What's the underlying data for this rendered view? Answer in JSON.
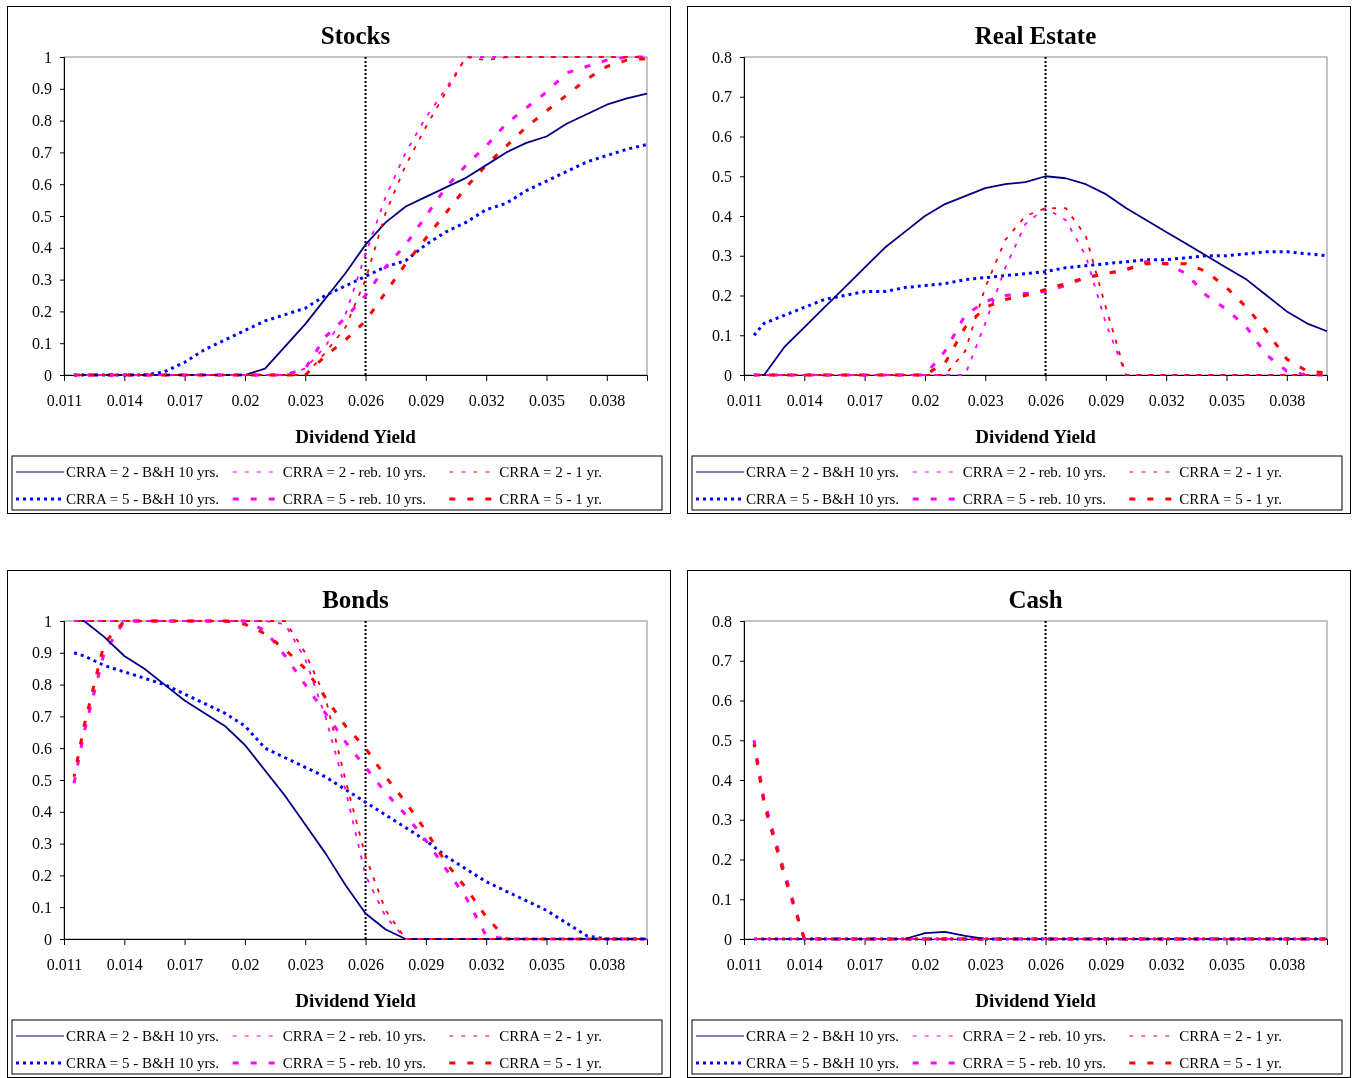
{
  "chart_data": [
    {
      "type": "line",
      "title": "Stocks",
      "xlabel": "Dividend Yield",
      "x": [
        0.0115,
        0.012,
        0.013,
        0.014,
        0.015,
        0.016,
        0.017,
        0.018,
        0.019,
        0.02,
        0.021,
        0.022,
        0.023,
        0.024,
        0.025,
        0.026,
        0.027,
        0.028,
        0.029,
        0.03,
        0.031,
        0.032,
        0.033,
        0.034,
        0.035,
        0.036,
        0.037,
        0.038,
        0.039,
        0.04
      ],
      "xlim": [
        0.011,
        0.04
      ],
      "xticks": [
        0.011,
        0.014,
        0.017,
        0.02,
        0.023,
        0.026,
        0.029,
        0.032,
        0.035,
        0.038
      ],
      "ylim": [
        0,
        1
      ],
      "yticks": [
        0,
        0.1,
        0.2,
        0.3,
        0.4,
        0.5,
        0.6,
        0.7,
        0.8,
        0.9,
        1
      ],
      "grid": false,
      "legend": "bottom",
      "ref_lines": [
        {
          "axis": "x",
          "value": 0.026,
          "color": "#000000",
          "line_style": "dotted"
        }
      ],
      "series": [
        {
          "name": "CRRA = 2 - B&H 10 yrs.",
          "color": "#000080",
          "line_style": "solid",
          "values": [
            0,
            0,
            0,
            0,
            0,
            0,
            0,
            0,
            0,
            0,
            0.02,
            0.09,
            0.16,
            0.24,
            0.32,
            0.41,
            0.48,
            0.53,
            0.56,
            0.59,
            0.62,
            0.66,
            0.7,
            0.73,
            0.75,
            0.79,
            0.82,
            0.85,
            0.87,
            0.885
          ]
        },
        {
          "name": "CRRA = 2 - reb. 10 yrs.",
          "color": "#ff00ff",
          "line_style": "dashed",
          "values": [
            0,
            0,
            0,
            0,
            0,
            0,
            0,
            0,
            0,
            0,
            0,
            0,
            0.02,
            0.09,
            0.19,
            0.38,
            0.56,
            0.7,
            0.81,
            0.9,
            1,
            1,
            1,
            1,
            1,
            1,
            1,
            1,
            1,
            1
          ]
        },
        {
          "name": "CRRA = 2 - 1 yr.",
          "color": "#ff0000",
          "line_style": "dashed",
          "values": [
            0,
            0,
            0,
            0,
            0,
            0,
            0,
            0,
            0,
            0,
            0,
            0,
            0,
            0.07,
            0.15,
            0.3,
            0.51,
            0.66,
            0.78,
            0.89,
            1,
            0.99,
            1,
            1,
            1,
            1,
            1,
            1,
            1,
            1
          ]
        },
        {
          "name": "CRRA = 5 - B&H 10 yrs.",
          "color": "#0000ff",
          "line_style": "dotted",
          "values": [
            0,
            0,
            0,
            0,
            0,
            0.01,
            0.04,
            0.08,
            0.11,
            0.14,
            0.17,
            0.19,
            0.21,
            0.25,
            0.28,
            0.31,
            0.34,
            0.36,
            0.41,
            0.45,
            0.48,
            0.52,
            0.54,
            0.58,
            0.61,
            0.64,
            0.67,
            0.69,
            0.71,
            0.725
          ]
        },
        {
          "name": "CRRA = 5 - reb. 10 yrs.",
          "color": "#ff00ff",
          "line_style": "dashed",
          "values": [
            0,
            0,
            0,
            0,
            0,
            0,
            0,
            0,
            0,
            0,
            0,
            0,
            0.02,
            0.12,
            0.18,
            0.25,
            0.34,
            0.41,
            0.5,
            0.59,
            0.66,
            0.72,
            0.79,
            0.84,
            0.89,
            0.95,
            0.97,
            0.99,
            1,
            1
          ]
        },
        {
          "name": "CRRA = 5 - 1 yr.",
          "color": "#ff0000",
          "line_style": "dashed",
          "values": [
            0,
            0,
            0,
            0,
            0,
            0,
            0,
            0,
            0,
            0,
            0,
            0,
            0,
            0.06,
            0.11,
            0.17,
            0.26,
            0.35,
            0.43,
            0.51,
            0.59,
            0.66,
            0.72,
            0.78,
            0.83,
            0.88,
            0.93,
            0.97,
            0.99,
            0.995
          ]
        }
      ]
    },
    {
      "type": "line",
      "title": "Real Estate",
      "xlabel": "Dividend Yield",
      "x": [
        0.0115,
        0.012,
        0.013,
        0.014,
        0.015,
        0.016,
        0.017,
        0.018,
        0.019,
        0.02,
        0.021,
        0.022,
        0.023,
        0.024,
        0.025,
        0.026,
        0.027,
        0.028,
        0.029,
        0.03,
        0.031,
        0.032,
        0.033,
        0.034,
        0.035,
        0.036,
        0.037,
        0.038,
        0.039,
        0.04
      ],
      "xlim": [
        0.011,
        0.04
      ],
      "xticks": [
        0.011,
        0.014,
        0.017,
        0.02,
        0.023,
        0.026,
        0.029,
        0.032,
        0.035,
        0.038
      ],
      "ylim": [
        0,
        0.8
      ],
      "yticks": [
        0,
        0.1,
        0.2,
        0.3,
        0.4,
        0.5,
        0.6,
        0.7,
        0.8
      ],
      "grid": false,
      "legend": "bottom",
      "ref_lines": [
        {
          "axis": "x",
          "value": 0.026,
          "color": "#000000",
          "line_style": "dotted"
        }
      ],
      "series": [
        {
          "name": "CRRA = 2 - B&H 10 yrs.",
          "color": "#000080",
          "line_style": "solid",
          "values": [
            0,
            0,
            0.07,
            0.12,
            0.17,
            0.22,
            0.27,
            0.32,
            0.36,
            0.4,
            0.43,
            0.45,
            0.47,
            0.48,
            0.485,
            0.5,
            0.495,
            0.48,
            0.455,
            0.42,
            0.39,
            0.36,
            0.33,
            0.3,
            0.27,
            0.24,
            0.2,
            0.16,
            0.13,
            0.11
          ]
        },
        {
          "name": "CRRA = 2 - reb. 10 yrs.",
          "color": "#ff00ff",
          "line_style": "dashed",
          "values": [
            0,
            0,
            0,
            0,
            0,
            0,
            0,
            0,
            0,
            0,
            0,
            0,
            0.13,
            0.27,
            0.38,
            0.42,
            0.39,
            0.3,
            0.13,
            0,
            0,
            0,
            0,
            0,
            0,
            0,
            0,
            0,
            0,
            0
          ]
        },
        {
          "name": "CRRA = 2 - 1 yr.",
          "color": "#ff0000",
          "line_style": "dashed",
          "values": [
            0,
            0,
            0,
            0,
            0,
            0,
            0,
            0,
            0,
            0,
            0,
            0.06,
            0.22,
            0.34,
            0.4,
            0.42,
            0.42,
            0.35,
            0.17,
            0,
            0,
            0,
            0,
            0,
            0,
            0,
            0,
            0,
            0,
            0
          ]
        },
        {
          "name": "CRRA = 5 - B&H 10 yrs.",
          "color": "#0000ff",
          "line_style": "dotted",
          "values": [
            0.1,
            0.13,
            0.15,
            0.17,
            0.19,
            0.2,
            0.21,
            0.21,
            0.22,
            0.225,
            0.23,
            0.24,
            0.245,
            0.25,
            0.255,
            0.26,
            0.27,
            0.275,
            0.28,
            0.285,
            0.29,
            0.29,
            0.295,
            0.3,
            0.3,
            0.305,
            0.31,
            0.31,
            0.305,
            0.3
          ]
        },
        {
          "name": "CRRA = 5 - reb. 10 yrs.",
          "color": "#ff00ff",
          "line_style": "dashed",
          "values": [
            0,
            0,
            0,
            0,
            0,
            0,
            0,
            0,
            0,
            0,
            0.06,
            0.15,
            0.185,
            0.2,
            0.205,
            0.21,
            0.225,
            0.245,
            0.255,
            0.265,
            0.285,
            0.28,
            0.255,
            0.2,
            0.165,
            0.12,
            0.05,
            0.01,
            0,
            0
          ]
        },
        {
          "name": "CRRA = 5 - 1 yr.",
          "color": "#ff0000",
          "line_style": "dashed",
          "values": [
            0,
            0,
            0,
            0,
            0,
            0,
            0,
            0,
            0,
            0,
            0.03,
            0.12,
            0.17,
            0.19,
            0.2,
            0.215,
            0.23,
            0.245,
            0.255,
            0.265,
            0.28,
            0.28,
            0.28,
            0.26,
            0.22,
            0.17,
            0.11,
            0.04,
            0.01,
            0.005
          ]
        }
      ]
    },
    {
      "type": "line",
      "title": "Bonds",
      "xlabel": "Dividend Yield",
      "x": [
        0.0115,
        0.012,
        0.013,
        0.014,
        0.015,
        0.016,
        0.017,
        0.018,
        0.019,
        0.02,
        0.021,
        0.022,
        0.023,
        0.024,
        0.025,
        0.026,
        0.027,
        0.028,
        0.029,
        0.03,
        0.031,
        0.032,
        0.033,
        0.034,
        0.035,
        0.036,
        0.037,
        0.038,
        0.039,
        0.04
      ],
      "xlim": [
        0.011,
        0.04
      ],
      "xticks": [
        0.011,
        0.014,
        0.017,
        0.02,
        0.023,
        0.026,
        0.029,
        0.032,
        0.035,
        0.038
      ],
      "ylim": [
        0,
        1
      ],
      "yticks": [
        0,
        0.1,
        0.2,
        0.3,
        0.4,
        0.5,
        0.6,
        0.7,
        0.8,
        0.9,
        1
      ],
      "grid": false,
      "legend": "bottom",
      "ref_lines": [
        {
          "axis": "x",
          "value": 0.026,
          "color": "#000000",
          "line_style": "dotted"
        }
      ],
      "series": [
        {
          "name": "CRRA = 2 - B&H 10 yrs.",
          "color": "#000080",
          "line_style": "solid",
          "values": [
            1,
            1,
            0.95,
            0.89,
            0.85,
            0.8,
            0.75,
            0.71,
            0.67,
            0.61,
            0.53,
            0.45,
            0.36,
            0.27,
            0.17,
            0.08,
            0.03,
            0,
            0,
            0,
            0,
            0,
            0,
            0,
            0,
            0,
            0,
            0,
            0,
            0
          ]
        },
        {
          "name": "CRRA = 2 - reb. 10 yrs.",
          "color": "#ff00ff",
          "line_style": "dashed",
          "values": [
            1,
            1,
            1,
            1,
            1,
            1,
            1,
            1,
            1,
            1,
            1,
            0.99,
            0.88,
            0.7,
            0.47,
            0.2,
            0.07,
            0,
            0,
            0,
            0,
            0,
            0,
            0,
            0,
            0,
            0,
            0,
            0,
            0
          ]
        },
        {
          "name": "CRRA = 2 - 1 yr.",
          "color": "#ff0000",
          "line_style": "dashed",
          "values": [
            1,
            1,
            1,
            1,
            1,
            1,
            1,
            1,
            1,
            1,
            1,
            1,
            0.9,
            0.76,
            0.5,
            0.26,
            0.09,
            0,
            0,
            0,
            0,
            0,
            0,
            0,
            0,
            0,
            0,
            0,
            0,
            0
          ]
        },
        {
          "name": "CRRA = 5 - B&H 10 yrs.",
          "color": "#0000ff",
          "line_style": "dotted",
          "values": [
            0.9,
            0.89,
            0.86,
            0.84,
            0.82,
            0.8,
            0.77,
            0.74,
            0.71,
            0.67,
            0.6,
            0.57,
            0.54,
            0.51,
            0.47,
            0.43,
            0.39,
            0.35,
            0.31,
            0.26,
            0.22,
            0.18,
            0.15,
            0.12,
            0.09,
            0.05,
            0.01,
            0,
            0,
            0
          ]
        },
        {
          "name": "CRRA = 5 - reb. 10 yrs.",
          "color": "#ff00ff",
          "line_style": "dashed",
          "values": [
            0.49,
            0.65,
            0.9,
            1,
            1,
            1,
            1,
            1,
            1,
            1,
            0.97,
            0.89,
            0.8,
            0.71,
            0.62,
            0.54,
            0.46,
            0.39,
            0.31,
            0.22,
            0.13,
            0.01,
            0,
            0,
            0,
            0,
            0,
            0,
            0,
            0
          ]
        },
        {
          "name": "CRRA = 5 - 1 yr.",
          "color": "#ff0000",
          "line_style": "dashed",
          "values": [
            0.51,
            0.67,
            0.93,
            1,
            1,
            1,
            1,
            1,
            1,
            0.99,
            0.96,
            0.91,
            0.85,
            0.76,
            0.67,
            0.6,
            0.51,
            0.43,
            0.34,
            0.24,
            0.16,
            0.07,
            0,
            0,
            0,
            0,
            0,
            0,
            0,
            0
          ]
        }
      ]
    },
    {
      "type": "line",
      "title": "Cash",
      "xlabel": "Dividend Yield",
      "x": [
        0.0115,
        0.012,
        0.013,
        0.014,
        0.015,
        0.016,
        0.017,
        0.018,
        0.019,
        0.02,
        0.021,
        0.022,
        0.023,
        0.024,
        0.025,
        0.026,
        0.027,
        0.028,
        0.029,
        0.03,
        0.031,
        0.032,
        0.033,
        0.034,
        0.035,
        0.036,
        0.037,
        0.038,
        0.039,
        0.04
      ],
      "xlim": [
        0.011,
        0.04
      ],
      "xticks": [
        0.011,
        0.014,
        0.017,
        0.02,
        0.023,
        0.026,
        0.029,
        0.032,
        0.035,
        0.038
      ],
      "ylim": [
        0,
        0.8
      ],
      "yticks": [
        0,
        0.1,
        0.2,
        0.3,
        0.4,
        0.5,
        0.6,
        0.7,
        0.8
      ],
      "grid": false,
      "legend": "bottom",
      "ref_lines": [
        {
          "axis": "x",
          "value": 0.026,
          "color": "#000000",
          "line_style": "dotted"
        }
      ],
      "series": [
        {
          "name": "CRRA = 2 - B&H 10 yrs.",
          "color": "#000080",
          "line_style": "solid",
          "values": [
            0,
            0,
            0,
            0,
            0,
            0,
            0,
            0,
            0,
            0.015,
            0.018,
            0.008,
            0,
            0,
            0,
            0,
            0,
            0,
            0,
            0,
            0,
            0,
            0,
            0,
            0,
            0,
            0,
            0,
            0,
            0
          ]
        },
        {
          "name": "CRRA = 2 - reb. 10 yrs.",
          "color": "#ff00ff",
          "line_style": "dashed",
          "values": [
            0,
            0,
            0,
            0,
            0,
            0,
            0,
            0,
            0,
            0,
            0,
            0,
            0,
            0,
            0,
            0,
            0,
            0,
            0,
            0,
            0,
            0,
            0,
            0,
            0,
            0,
            0,
            0,
            0,
            0
          ]
        },
        {
          "name": "CRRA = 2 - 1 yr.",
          "color": "#ff0000",
          "line_style": "dashed",
          "values": [
            0,
            0,
            0,
            0,
            0,
            0,
            0,
            0,
            0,
            0,
            0,
            0,
            0,
            0,
            0,
            0,
            0,
            0,
            0,
            0,
            0,
            0,
            0,
            0,
            0,
            0,
            0,
            0,
            0,
            0
          ]
        },
        {
          "name": "CRRA = 5 - B&H 10 yrs.",
          "color": "#0000ff",
          "line_style": "dotted",
          "values": [
            0,
            0,
            0,
            0,
            0,
            0,
            0,
            0,
            0,
            0,
            0,
            0,
            0,
            0,
            0,
            0,
            0,
            0,
            0,
            0,
            0,
            0,
            0,
            0,
            0,
            0,
            0,
            0,
            0,
            0
          ]
        },
        {
          "name": "CRRA = 5 - reb. 10 yrs.",
          "color": "#ff00ff",
          "line_style": "dashed",
          "values": [
            0.5,
            0.35,
            0.17,
            0,
            0,
            0,
            0,
            0,
            0,
            0,
            0,
            0,
            0,
            0,
            0,
            0,
            0,
            0,
            0,
            0,
            0,
            0,
            0,
            0,
            0,
            0,
            0,
            0,
            0,
            0
          ]
        },
        {
          "name": "CRRA = 5 - 1 yr.",
          "color": "#ff0000",
          "line_style": "dashed",
          "values": [
            0.49,
            0.34,
            0.16,
            0,
            0,
            0,
            0,
            0,
            0,
            0,
            0,
            0,
            0,
            0,
            0,
            0,
            0,
            0,
            0,
            0,
            0,
            0,
            0,
            0,
            0,
            0,
            0,
            0,
            0,
            0
          ]
        }
      ]
    }
  ]
}
